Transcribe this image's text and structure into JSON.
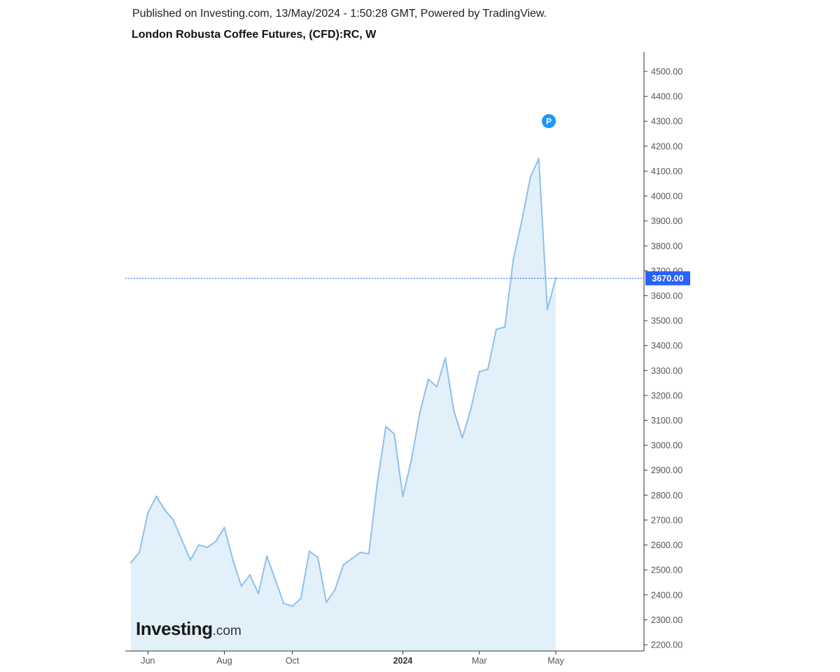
{
  "header": {
    "published": "Published on Investing.com, 13/May/2024 - 1:50:28 GMT, Powered by TradingView.",
    "title": "London Robusta Coffee Futures, (CFD):RC, W"
  },
  "logo": {
    "main": "Investing",
    "suffix": ".com"
  },
  "marker": {
    "label": "P",
    "color": "#2196f3"
  },
  "last_price": {
    "label": "3670.00",
    "value": 3670,
    "color": "#2962ff"
  },
  "colors": {
    "line": "#8fc0ec",
    "fill": "#e2f0fa",
    "axis": "#333333",
    "grid_text": "#555555"
  },
  "chart_data": {
    "type": "area",
    "title": "London Robusta Coffee Futures, (CFD):RC, W",
    "xlabel": "",
    "ylabel": "",
    "ylim": [
      2175,
      4580
    ],
    "x_tick_labels": [
      {
        "label": "Jun",
        "index": 2,
        "bold": false
      },
      {
        "label": "Aug",
        "index": 11,
        "bold": false
      },
      {
        "label": "Oct",
        "index": 19,
        "bold": false
      },
      {
        "label": "2024",
        "index": 32,
        "bold": true
      },
      {
        "label": "Mar",
        "index": 41,
        "bold": false
      },
      {
        "label": "May",
        "index": 50,
        "bold": false
      }
    ],
    "y_tick_labels": [
      "2200.00",
      "2300.00",
      "2400.00",
      "2500.00",
      "2600.00",
      "2700.00",
      "2800.00",
      "2900.00",
      "3000.00",
      "3100.00",
      "3200.00",
      "3300.00",
      "3400.00",
      "3500.00",
      "3600.00",
      "3700.00",
      "3800.00",
      "3900.00",
      "4000.00",
      "4100.00",
      "4200.00",
      "4300.00",
      "4400.00",
      "4500.00"
    ],
    "y_ticks": [
      2200,
      2300,
      2400,
      2500,
      2600,
      2700,
      2800,
      2900,
      3000,
      3100,
      3200,
      3300,
      3400,
      3500,
      3600,
      3700,
      3800,
      3900,
      4000,
      4100,
      4200,
      4300,
      4400,
      4500
    ],
    "series": [
      {
        "values": [
          2530,
          2570,
          2730,
          2795,
          2740,
          2700,
          2620,
          2540,
          2600,
          2590,
          2615,
          2670,
          2540,
          2435,
          2480,
          2405,
          2555,
          2460,
          2365,
          2355,
          2385,
          2575,
          2550,
          2370,
          2420,
          2520,
          2545,
          2570,
          2565,
          2850,
          3075,
          3045,
          2795,
          2940,
          3130,
          3265,
          3235,
          3350,
          3140,
          3030,
          3145,
          3295,
          3305,
          3465,
          3475,
          3745,
          3900,
          4075,
          4150,
          3545,
          3670
        ]
      }
    ]
  }
}
